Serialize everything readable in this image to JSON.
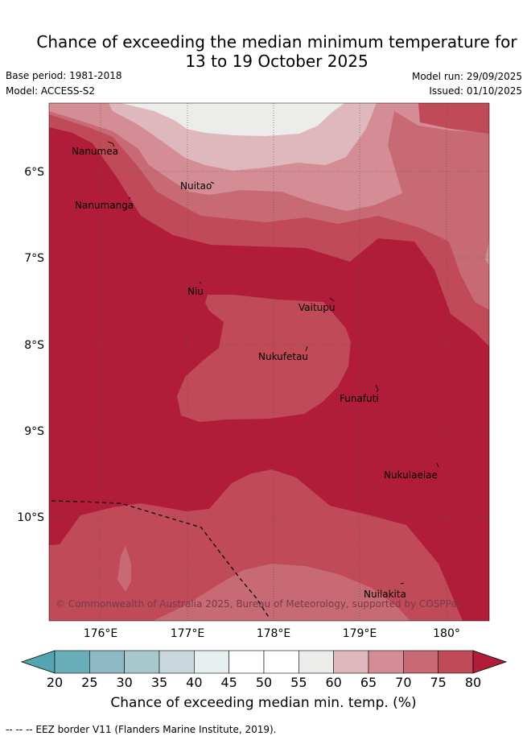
{
  "title_line1": "Chance of exceeding the median minimum temperature for",
  "title_line2": "13 to 19 October 2025",
  "base_period": "Base period: 1981-2018",
  "model": "Model: ACCESS-S2",
  "model_run": "Model run: 29/09/2025",
  "issued": "Issued: 01/10/2025",
  "copyright": "© Commonwealth of Australia 2025, Bureau of Meteorology, supported by COSPPac",
  "lon_ticks": [
    "176°E",
    "177°E",
    "178°E",
    "179°E",
    "180°"
  ],
  "lat_ticks": [
    "6°S",
    "7°S",
    "8°S",
    "9°S",
    "10°S"
  ],
  "places": [
    "Nanumea",
    "Nuitao",
    "Nanumanga",
    "Niu",
    "Vaitupu",
    "Nukufetau",
    "Funafuti",
    "Nukulaelae",
    "Nuilakita"
  ],
  "colorbar": {
    "title": "Chance of exceeding median min. temp. (%)",
    "labels": [
      "20",
      "25",
      "30",
      "35",
      "40",
      "45",
      "50",
      "55",
      "60",
      "65",
      "70",
      "75",
      "80"
    ],
    "colors": [
      "#6aaeba",
      "#8db9c4",
      "#a9c8cc",
      "#c8d8dc",
      "#e8eff1",
      "#ffffff",
      "#ffffff",
      "#ececea",
      "#dfb8bd",
      "#d48d94",
      "#c86a73",
      "#c04a57",
      "#b11d38"
    ],
    "under_color": "#55a4b1",
    "over_color": "#b11d38"
  },
  "footnote": "--  --  -- EEZ border V11 (Flanders Marine Institute, 2019)."
}
